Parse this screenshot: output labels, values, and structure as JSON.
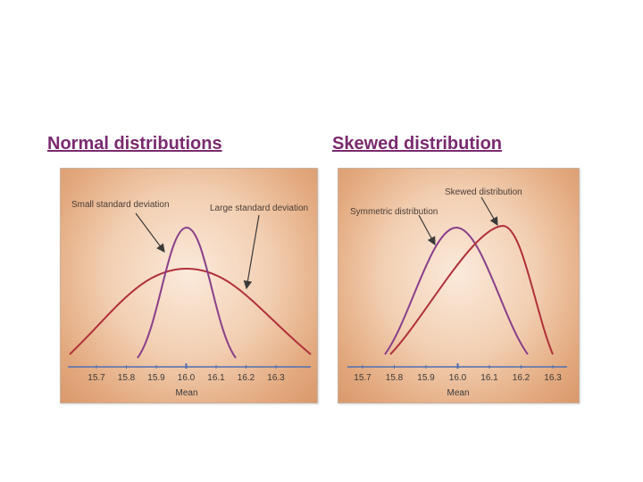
{
  "headings": {
    "left": "Normal distributions",
    "right": "Skewed distribution"
  },
  "left_panel": {
    "labels": {
      "small_sd": "Small standard deviation",
      "large_sd": "Large standard deviation"
    },
    "axis_title": "Mean",
    "ticks": [
      "15.7",
      "15.8",
      "15.9",
      "16.0",
      "16.1",
      "16.2",
      "16.3"
    ]
  },
  "right_panel": {
    "labels": {
      "symmetric": "Symmetric distribution",
      "skewed": "Skewed distribution"
    },
    "axis_title": "Mean",
    "ticks": [
      "15.7",
      "15.8",
      "15.9",
      "16.0",
      "16.1",
      "16.2",
      "16.3"
    ]
  },
  "colors": {
    "heading": "#7a2a6f",
    "curve_red": "#b0303a",
    "curve_purple": "#8a3f8a",
    "axis": "#4f6fb0",
    "arrow": "#3a3a3a"
  }
}
